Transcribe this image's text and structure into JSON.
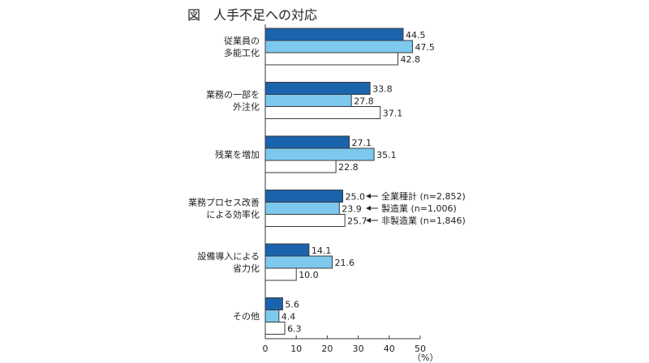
{
  "chart_data": {
    "type": "bar",
    "orientation": "horizontal",
    "title": "図　人手不足への対応",
    "xlabel": "（%）",
    "xlim": [
      0,
      50
    ],
    "xticks": [
      0,
      10,
      20,
      30,
      40,
      50
    ],
    "grid": false,
    "legend_placement": "inline-right",
    "categories": [
      [
        "従業員の",
        "多能工化"
      ],
      [
        "業務の一部を",
        "外注化"
      ],
      [
        "残業を増加"
      ],
      [
        "業務プロセス改善",
        "による効率化"
      ],
      [
        "設備導入による",
        "省力化"
      ],
      [
        "その他"
      ]
    ],
    "series": [
      {
        "name": "全業種計 (n=2,852)",
        "color": "#1a63ad",
        "values": [
          44.5,
          33.8,
          27.1,
          25.0,
          14.1,
          5.6
        ],
        "value_labels": [
          "44.5",
          "33.8",
          "27.1",
          "25.0",
          "14.1",
          "5.6"
        ]
      },
      {
        "name": "製造業 (n=1,006)",
        "color": "#7dc8ef",
        "values": [
          47.5,
          27.8,
          35.1,
          23.9,
          21.6,
          4.4
        ],
        "value_labels": [
          "47.5",
          "27.8",
          "35.1",
          "23.9",
          "21.6",
          "4.4"
        ]
      },
      {
        "name": "非製造業 (n=1,846)",
        "color": "#ffffff",
        "values": [
          42.8,
          37.1,
          22.8,
          25.7,
          10.0,
          6.3
        ],
        "value_labels": [
          "42.8",
          "37.1",
          "22.8",
          "25.7",
          "10.0",
          "6.3"
        ]
      }
    ]
  }
}
